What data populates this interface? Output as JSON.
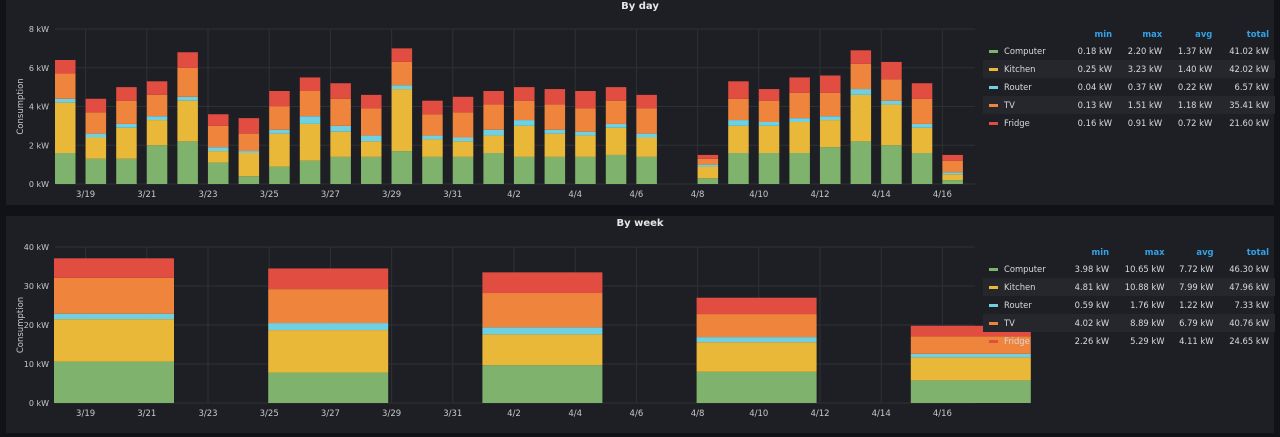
{
  "colors": {
    "Computer": "#7eb26d",
    "Kitchen": "#eab839",
    "Router": "#6ed0e0",
    "TV": "#ef843c",
    "Fridge": "#e24d42"
  },
  "legend_columns": [
    "min",
    "max",
    "avg",
    "total"
  ],
  "chart_data": [
    {
      "type": "bar",
      "stacked": true,
      "title": "By day",
      "ylabel": "Consumption",
      "ylim": [
        0,
        8
      ],
      "yticks": [
        "0 kW",
        "2 kW",
        "4 kW",
        "6 kW",
        "8 kW"
      ],
      "xticks": [
        "3/19",
        "3/21",
        "3/23",
        "3/25",
        "3/27",
        "3/29",
        "3/31",
        "4/2",
        "4/4",
        "4/6",
        "4/8",
        "4/10",
        "4/12",
        "4/14",
        "4/16"
      ],
      "categories": [
        "3/18",
        "3/19",
        "3/20",
        "3/21",
        "3/22",
        "3/23",
        "3/24",
        "3/25",
        "3/26",
        "3/27",
        "3/28",
        "3/29",
        "3/30",
        "3/31",
        "4/1",
        "4/2",
        "4/3",
        "4/4",
        "4/5",
        "4/6",
        "4/7",
        "4/8",
        "4/9",
        "4/10",
        "4/11",
        "4/12",
        "4/13",
        "4/14",
        "4/15",
        "4/16"
      ],
      "series": [
        {
          "name": "Computer",
          "values": [
            1.6,
            1.3,
            1.3,
            2.0,
            2.2,
            1.1,
            0.4,
            0.9,
            1.2,
            1.4,
            1.4,
            1.7,
            1.4,
            1.4,
            1.6,
            1.4,
            1.4,
            1.4,
            1.5,
            1.4,
            null,
            0.3,
            1.6,
            1.6,
            1.6,
            1.9,
            2.2,
            2.0,
            1.6,
            0.2
          ]
        },
        {
          "name": "Kitchen",
          "values": [
            2.6,
            1.1,
            1.6,
            1.3,
            2.1,
            0.6,
            1.2,
            1.7,
            1.9,
            1.3,
            0.8,
            3.2,
            0.9,
            0.8,
            0.9,
            1.6,
            1.2,
            1.1,
            1.4,
            1.0,
            null,
            0.6,
            1.4,
            1.4,
            1.6,
            1.4,
            2.4,
            2.1,
            1.3,
            0.3
          ]
        },
        {
          "name": "Router",
          "values": [
            0.2,
            0.2,
            0.2,
            0.2,
            0.2,
            0.2,
            0.1,
            0.2,
            0.4,
            0.3,
            0.3,
            0.2,
            0.2,
            0.2,
            0.3,
            0.3,
            0.2,
            0.2,
            0.2,
            0.2,
            null,
            0.1,
            0.3,
            0.2,
            0.2,
            0.2,
            0.3,
            0.2,
            0.2,
            0.1
          ]
        },
        {
          "name": "TV",
          "values": [
            1.3,
            1.1,
            1.2,
            1.1,
            1.5,
            1.1,
            0.9,
            1.2,
            1.3,
            1.4,
            1.4,
            1.2,
            1.1,
            1.3,
            1.3,
            1.0,
            1.3,
            1.2,
            1.2,
            1.3,
            null,
            0.3,
            1.1,
            1.1,
            1.3,
            1.2,
            1.3,
            1.1,
            1.3,
            0.6
          ]
        },
        {
          "name": "Fridge",
          "values": [
            0.7,
            0.7,
            0.7,
            0.7,
            0.8,
            0.6,
            0.8,
            0.8,
            0.7,
            0.8,
            0.7,
            0.7,
            0.7,
            0.8,
            0.7,
            0.7,
            0.8,
            0.9,
            0.7,
            0.7,
            null,
            0.2,
            0.9,
            0.6,
            0.8,
            0.9,
            0.7,
            0.9,
            0.8,
            0.3
          ]
        }
      ],
      "legend": [
        {
          "name": "Computer",
          "min": "0.18 kW",
          "max": "2.20 kW",
          "avg": "1.37 kW",
          "total": "41.02 kW"
        },
        {
          "name": "Kitchen",
          "min": "0.25 kW",
          "max": "3.23 kW",
          "avg": "1.40 kW",
          "total": "42.02 kW"
        },
        {
          "name": "Router",
          "min": "0.04 kW",
          "max": "0.37 kW",
          "avg": "0.22 kW",
          "total": "6.57 kW"
        },
        {
          "name": "TV",
          "min": "0.13 kW",
          "max": "1.51 kW",
          "avg": "1.18 kW",
          "total": "35.41 kW"
        },
        {
          "name": "Fridge",
          "min": "0.16 kW",
          "max": "0.91 kW",
          "avg": "0.72 kW",
          "total": "21.60 kW"
        }
      ]
    },
    {
      "type": "bar",
      "stacked": true,
      "title": "By week",
      "ylabel": "Consumption",
      "ylim": [
        0,
        40
      ],
      "yticks": [
        "0 kW",
        "10 kW",
        "20 kW",
        "30 kW",
        "40 kW"
      ],
      "xticks": [
        "3/19",
        "3/21",
        "3/23",
        "3/25",
        "3/27",
        "3/29",
        "3/31",
        "4/2",
        "4/4",
        "4/6",
        "4/8",
        "4/10",
        "4/12",
        "4/14",
        "4/16"
      ],
      "categories": [
        "3/18",
        "3/25",
        "4/1",
        "4/8",
        "4/15"
      ],
      "series": [
        {
          "name": "Computer",
          "values": [
            10.6,
            7.8,
            9.7,
            8.0,
            5.8
          ]
        },
        {
          "name": "Kitchen",
          "values": [
            10.9,
            10.9,
            7.9,
            7.6,
            5.9
          ]
        },
        {
          "name": "Router",
          "values": [
            1.4,
            1.8,
            1.8,
            1.3,
            0.9
          ]
        },
        {
          "name": "TV",
          "values": [
            9.2,
            8.7,
            8.8,
            5.9,
            4.5
          ]
        },
        {
          "name": "Fridge",
          "values": [
            5.0,
            5.3,
            5.3,
            4.2,
            2.7
          ]
        }
      ],
      "legend": [
        {
          "name": "Computer",
          "min": "3.98 kW",
          "max": "10.65 kW",
          "avg": "7.72 kW",
          "total": "46.30 kW"
        },
        {
          "name": "Kitchen",
          "min": "4.81 kW",
          "max": "10.88 kW",
          "avg": "7.99 kW",
          "total": "47.96 kW"
        },
        {
          "name": "Router",
          "min": "0.59 kW",
          "max": "1.76 kW",
          "avg": "1.22 kW",
          "total": "7.33 kW"
        },
        {
          "name": "TV",
          "min": "4.02 kW",
          "max": "8.89 kW",
          "avg": "6.79 kW",
          "total": "40.76 kW"
        },
        {
          "name": "Fridge",
          "min": "2.26 kW",
          "max": "5.29 kW",
          "avg": "4.11 kW",
          "total": "24.65 kW"
        }
      ]
    }
  ]
}
